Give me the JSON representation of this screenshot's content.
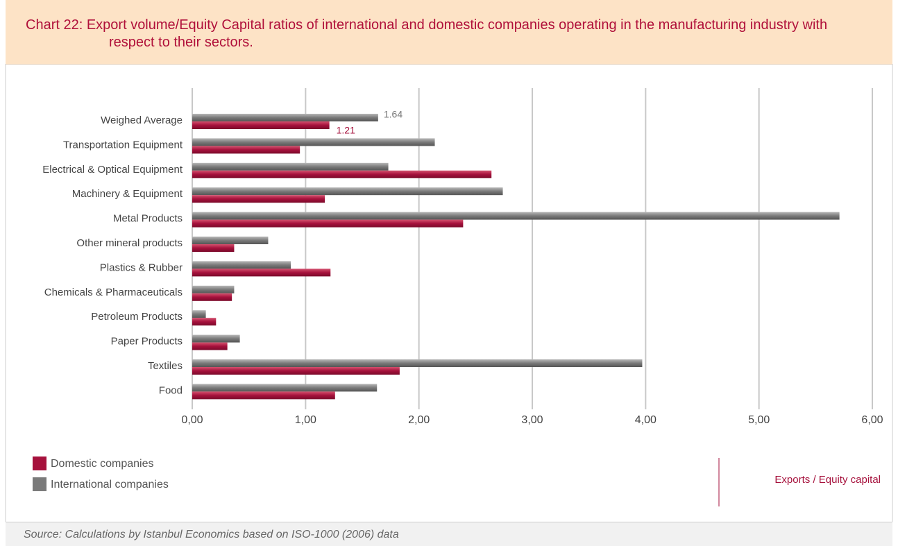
{
  "chart_data": {
    "type": "bar",
    "orientation": "horizontal",
    "label": "Chart 22:",
    "title": "Export volume/Equity Capital ratios of international and domestic companies operating in the manufacturing industry with respect to their sectors.",
    "categories": [
      "Weighed Average",
      "Transportation Equipment",
      "Electrical & Optical Equipment",
      "Machinery & Equipment",
      "Metal Products",
      "Other mineral products",
      "Plastics & Rubber",
      "Chemicals & Pharmaceuticals",
      "Petroleum Products",
      "Paper Products",
      "Textiles",
      "Food"
    ],
    "series": [
      {
        "name": "Domestic companies",
        "color": "#a6113c",
        "values": [
          1.21,
          0.95,
          2.64,
          1.17,
          2.39,
          0.37,
          1.22,
          0.35,
          0.21,
          0.31,
          1.83,
          1.26
        ],
        "value_labels": [
          "1.21",
          null,
          null,
          null,
          null,
          null,
          null,
          null,
          null,
          null,
          null,
          null
        ]
      },
      {
        "name": "International companies",
        "color": "#7a7a7a",
        "values": [
          1.64,
          2.14,
          1.73,
          2.74,
          5.71,
          0.67,
          0.87,
          0.37,
          0.12,
          0.42,
          3.97,
          1.63
        ],
        "value_labels": [
          "1.64",
          null,
          null,
          null,
          null,
          null,
          null,
          null,
          null,
          null,
          null,
          null
        ]
      }
    ],
    "xlim": [
      0,
      6
    ],
    "xticks": [
      {
        "value": 0,
        "label": "0,00"
      },
      {
        "value": 1,
        "label": "1,00"
      },
      {
        "value": 2,
        "label": "2,00"
      },
      {
        "value": 3,
        "label": "3,00"
      },
      {
        "value": 4,
        "label": "4,00"
      },
      {
        "value": 5,
        "label": "5,00"
      },
      {
        "value": 6,
        "label": "6,00"
      }
    ],
    "grid": true,
    "xlabel": "Exports / Equity capital",
    "source": "Source: Calculations by Istanbul Economics based on ISO-1000 (2006) data"
  }
}
